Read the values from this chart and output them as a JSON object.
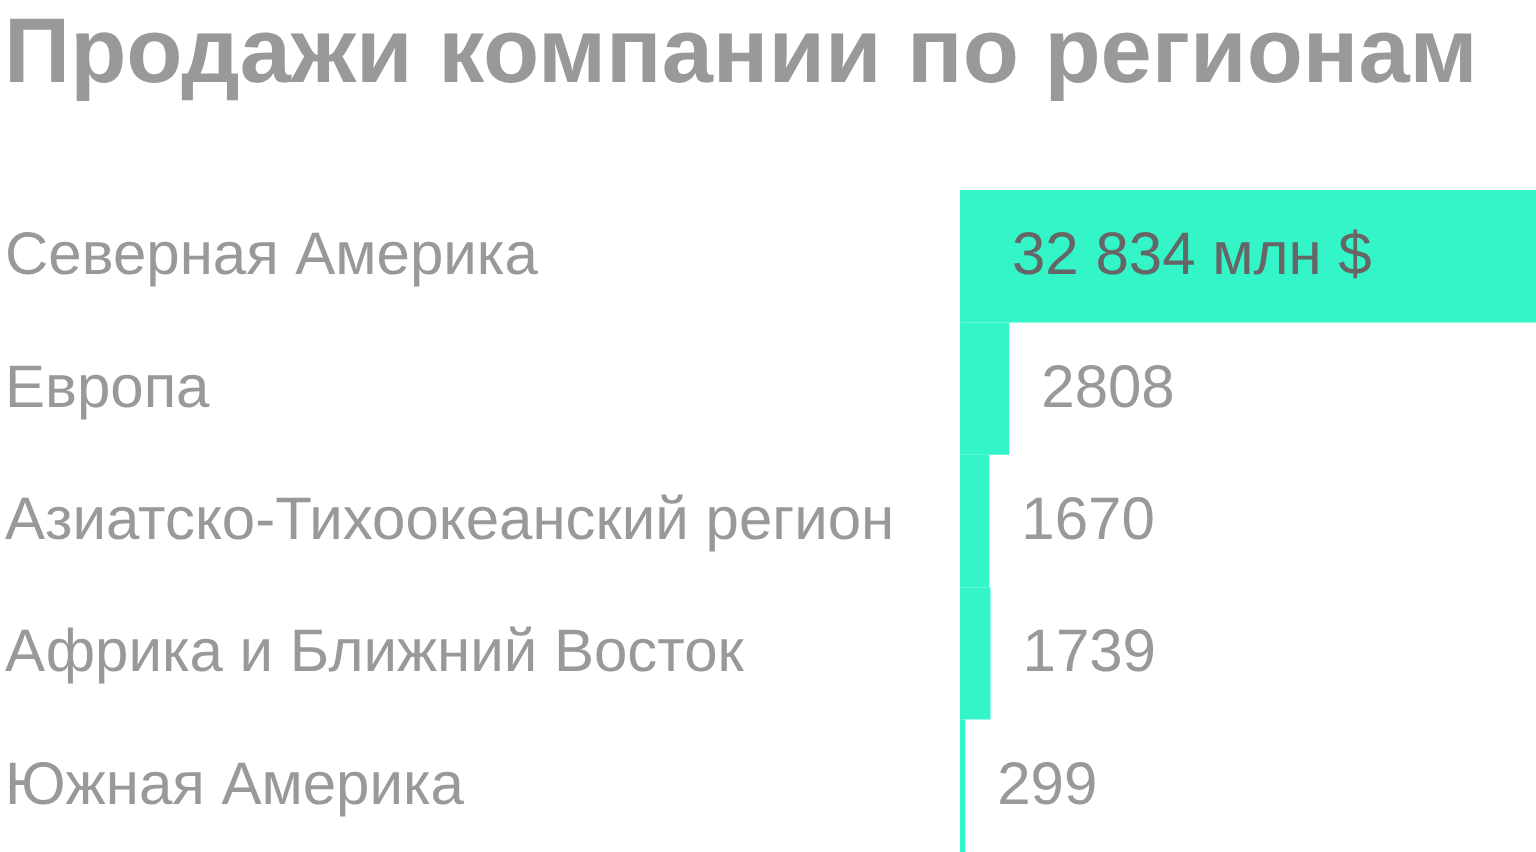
{
  "chart_data": {
    "type": "bar",
    "orientation": "horizontal",
    "title": "Продажи компании по регионам",
    "categories": [
      "Северная Америка",
      "Европа",
      "Азиатско-Тихоокеанский регион",
      "Африка и Ближний Восток",
      "Южная Америка"
    ],
    "values": [
      32834,
      2808,
      1670,
      1739,
      299
    ],
    "value_labels": [
      "32 834 млн $",
      "2808",
      "1670",
      "1739",
      "299"
    ],
    "color": "#33f5c8"
  }
}
